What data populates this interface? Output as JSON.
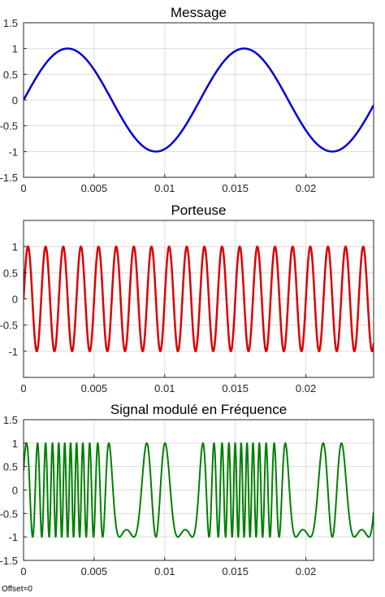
{
  "chart_data": [
    {
      "type": "line",
      "title": "Message",
      "xlabel": "",
      "ylabel": "",
      "xlim": [
        0,
        0.0248
      ],
      "ylim": [
        -1.5,
        1.5
      ],
      "xticks": [
        "0",
        "0.005",
        "0.01",
        "0.015",
        "0.02"
      ],
      "yticks": [
        "1.5",
        "1",
        "0.5",
        "0",
        "-0.5",
        "-1",
        "-1.5"
      ],
      "grid": true,
      "series": [
        {
          "color": "#0000d8",
          "function": "sin(2*pi*f*t)",
          "frequency_hz": 80,
          "amplitude": 1,
          "x_range": [
            0,
            0.0248
          ]
        }
      ]
    },
    {
      "type": "line",
      "title": "Porteuse",
      "xlabel": "",
      "ylabel": "",
      "xlim": [
        0,
        0.0248
      ],
      "ylim": [
        -1.5,
        1.5
      ],
      "xticks": [
        "0",
        "0.005",
        "0.01",
        "0.015",
        "0.02"
      ],
      "yticks": [
        "1",
        "0.5",
        "0",
        "-0.5",
        "-1"
      ],
      "grid": true,
      "series": [
        {
          "color": "#dd0000",
          "function": "sin(2*pi*f*t)",
          "frequency_hz": 800,
          "amplitude": 1,
          "x_range": [
            0,
            0.0248
          ]
        }
      ]
    },
    {
      "type": "line",
      "title": "Signal modulé en Fréquence",
      "xlabel": "",
      "ylabel": "",
      "xlim": [
        0,
        0.0248
      ],
      "ylim": [
        -1.5,
        1.5
      ],
      "xticks": [
        "0",
        "0.005",
        "0.01",
        "0.015",
        "0.02"
      ],
      "yticks": [
        "1.5",
        "1",
        "0.5",
        "0",
        "-0.5",
        "-1",
        "-1.5"
      ],
      "grid": true,
      "series": [
        {
          "color": "#008000",
          "function": "cos(2*pi*fc*t - beta*cos(2*pi*fm*t))",
          "carrier_hz": 800,
          "message_hz": 80,
          "modulation_index": 20,
          "x_range": [
            0,
            0.0248
          ]
        }
      ]
    }
  ],
  "footnote": "Offset=0"
}
